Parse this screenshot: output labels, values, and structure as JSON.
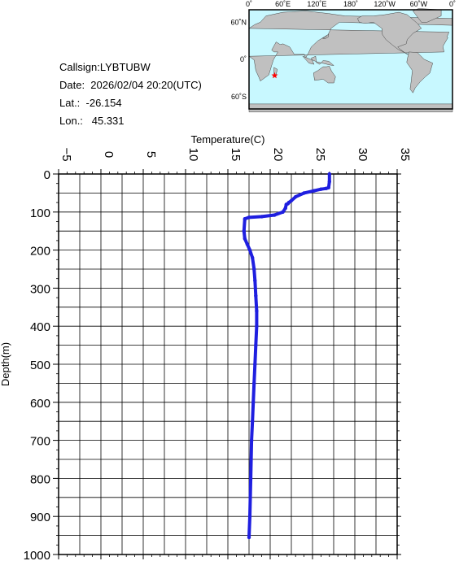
{
  "info": {
    "callsign": "Callsign:LYBTUBW",
    "date": "Date:  2026/02/04 20:20(UTC)",
    "lat": "Lat.:  -26.154",
    "lon": "Lon.:   45.331"
  },
  "map": {
    "lon_labels": [
      "0˚",
      "60˚E",
      "120˚E",
      "180˚",
      "120˚W",
      "60˚W",
      "0˚"
    ],
    "lat_labels": [
      "60˚N",
      "0˚",
      "60˚S"
    ],
    "marker": {
      "lat": -26.154,
      "lon": 45.331
    },
    "colors": {
      "ocean": "#c8f8ff",
      "land": "#c0c0c0",
      "marker": "#ff0000"
    }
  },
  "chart_data": {
    "type": "line",
    "xlabel": "Temperature(C)",
    "ylabel": "Depth(m)",
    "xlim": [
      -5,
      35
    ],
    "ylim": [
      1000,
      0
    ],
    "x_ticks": [
      -5,
      0,
      5,
      10,
      15,
      20,
      25,
      30,
      35
    ],
    "y_ticks": [
      0,
      100,
      200,
      300,
      400,
      500,
      600,
      700,
      800,
      900,
      1000
    ],
    "series_color": "#1f1fe0",
    "series": [
      {
        "x": [
          27.0,
          27.0,
          26.9,
          26.6,
          26.0,
          25.2,
          24.0,
          23.0,
          22.5,
          22.2,
          22.1,
          21.9,
          21.8,
          21.5,
          20.5,
          19.0,
          17.5,
          17.0,
          16.9,
          17.0,
          17.3,
          17.6,
          17.9,
          18.1,
          18.2,
          18.3,
          18.4,
          18.4,
          18.3,
          18.2,
          18.1,
          18.0,
          17.9,
          17.8,
          17.7,
          17.6,
          17.5
        ],
        "y": [
          0,
          20,
          36,
          38,
          40,
          44,
          50,
          60,
          70,
          75,
          78,
          80,
          90,
          100,
          108,
          112,
          114,
          118,
          150,
          170,
          185,
          200,
          220,
          250,
          280,
          320,
          360,
          400,
          450,
          500,
          550,
          600,
          650,
          700,
          800,
          900,
          955
        ]
      }
    ]
  }
}
